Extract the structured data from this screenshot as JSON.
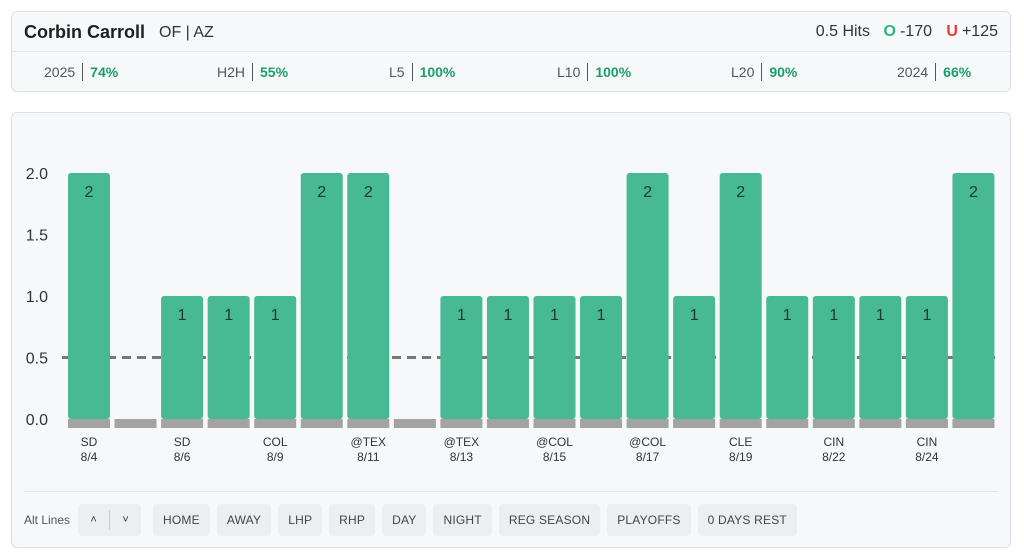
{
  "header": {
    "player_name": "Corbin Carroll",
    "player_pos": "OF | AZ",
    "line_label": "0.5 Hits",
    "over": {
      "letter": "O",
      "odds": "-170"
    },
    "under": {
      "letter": "U",
      "odds": "+125"
    }
  },
  "stats": [
    {
      "label": "2025",
      "value": "74%"
    },
    {
      "label": "H2H",
      "value": "55%"
    },
    {
      "label": "L5",
      "value": "100%"
    },
    {
      "label": "L10",
      "value": "100%"
    },
    {
      "label": "L20",
      "value": "90%"
    },
    {
      "label": "2024",
      "value": "66%"
    }
  ],
  "chart_data": {
    "type": "bar",
    "line": 0.5,
    "ylim": [
      0,
      2
    ],
    "yticks": [
      "0.0",
      "0.5",
      "1.0",
      "1.5",
      "2.0"
    ],
    "values": [
      2,
      0,
      1,
      1,
      1,
      2,
      2,
      0,
      1,
      1,
      1,
      1,
      2,
      1,
      2,
      1,
      1,
      1,
      1,
      2
    ],
    "x_labels": [
      {
        "index": 0,
        "team": "SD",
        "date": "8/4"
      },
      {
        "index": 2,
        "team": "SD",
        "date": "8/6"
      },
      {
        "index": 4,
        "team": "COL",
        "date": "8/9"
      },
      {
        "index": 6,
        "team": "@TEX",
        "date": "8/11"
      },
      {
        "index": 8,
        "team": "@TEX",
        "date": "8/13"
      },
      {
        "index": 10,
        "team": "@COL",
        "date": "8/15"
      },
      {
        "index": 12,
        "team": "@COL",
        "date": "8/17"
      },
      {
        "index": 14,
        "team": "CLE",
        "date": "8/19"
      },
      {
        "index": 16,
        "team": "CIN",
        "date": "8/22"
      },
      {
        "index": 18,
        "team": "CIN",
        "date": "8/24"
      }
    ],
    "colors": {
      "hit": "#47b993",
      "miss": "#a3a3a3",
      "line": "#777777"
    }
  },
  "filters": {
    "alt_label": "Alt Lines",
    "up_glyph": "˄",
    "down_glyph": "˅",
    "chips": [
      "HOME",
      "AWAY",
      "LHP",
      "RHP",
      "DAY",
      "NIGHT",
      "REG SEASON",
      "PLAYOFFS",
      "0 DAYS REST"
    ]
  }
}
